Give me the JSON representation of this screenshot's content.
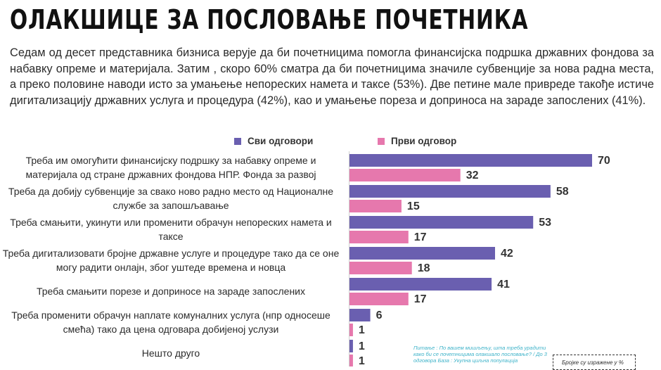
{
  "title": "ОЛАКШИЦЕ ЗА ПОСЛОВАЊЕ ПОЧЕТНИКА",
  "intro": "Седам од десет представника бизниса верује да би почетницима помогла финансијска подршка државних фондова за набавку опреме и материјала. Затим , скоро 60% сматра да би почетницима значиле субвенције за нова радна места, а преко половине наводи исто за умањење непореских намета и таксе (53%). Две петине мале привреде такође истиче дигитализацију државних услуга и процедура (42%), као и умањење пореза и доприноса на зараде запослених (41%).",
  "note": "Питање : По вашем мишљењу, шта треба урадити како би се почетницима олакшало пословање? / До 3 одговора База : Укупна циљна популација",
  "units_note": "Бројке су изражене у %",
  "colors": {
    "all": "#6a5fb0",
    "first": "#e678ad"
  },
  "chart_data": {
    "type": "bar",
    "orientation": "horizontal",
    "title": "",
    "categories": [
      "Треба им омогућити финансијску подршку за набавку опреме и материјала од стране државних фондова НПР. Фонда за развој",
      "Треба да добију субвенције за свако ново радно место од Националне службе за запошљавање",
      "Треба смањити, укинути или променити обрачун непореских намета и таксе",
      "Треба дигитализовати бројне државне услуге и процедуре тако да се оне могу радити онлајн, због уштеде времена и новца",
      "Треба смањити порезе и доприносе на зараде запослених",
      "Треба променити обрачун наплате комуналних услуга (нпр односеше смећа) тако да цена одговара добијеној услузи",
      "Нешто друго"
    ],
    "series": [
      {
        "name": "Сви одговори",
        "values": [
          70,
          58,
          53,
          42,
          41,
          6,
          1
        ]
      },
      {
        "name": "Први одговор",
        "values": [
          32,
          15,
          17,
          18,
          17,
          1,
          1
        ]
      }
    ],
    "legend_position": "top",
    "unit": "%",
    "xlim": [
      0,
      70
    ]
  }
}
